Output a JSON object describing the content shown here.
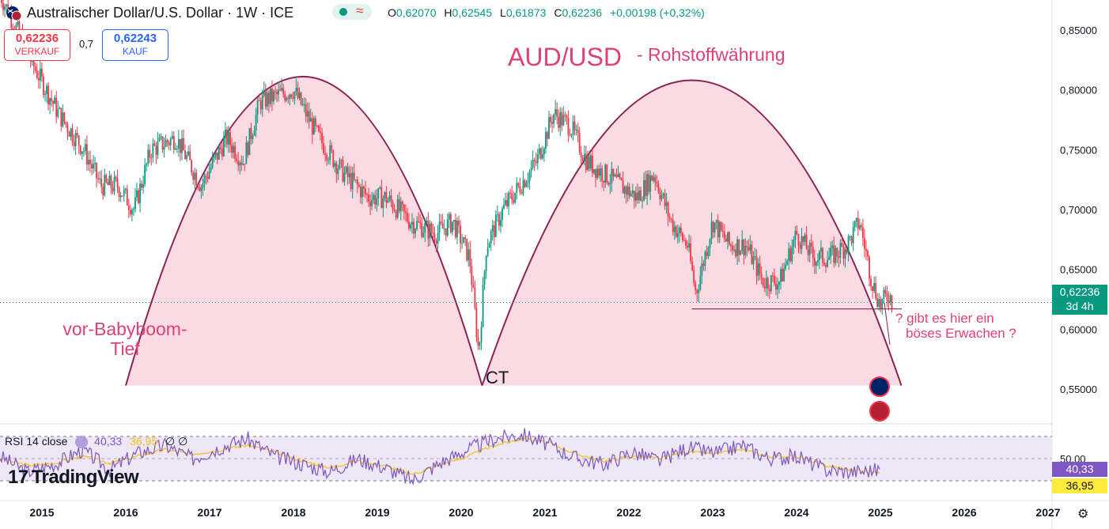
{
  "header": {
    "flag_icon": "aud-usd-flag-icon",
    "title": "Australischer Dollar/U.S. Dollar · 1W · ICE",
    "approx_symbol": "≈",
    "ohlc": {
      "o_label": "O",
      "o": "0,62070",
      "h_label": "H",
      "h": "0,62545",
      "l_label": "L",
      "l": "0,61873",
      "c_label": "C",
      "c": "0,62236",
      "change": "+0,00198 (+0,32%)"
    }
  },
  "trade": {
    "sell_price": "0,62236",
    "sell_label": "VERKAUF",
    "spread": "0,7",
    "buy_price": "0,62243",
    "buy_label": "KAUF"
  },
  "annotations": {
    "headline": "AUD/USD",
    "subtitle": "- Rohstoffwährung",
    "left_label_line1": "vor-Babyboom-",
    "left_label_line2": "Tief",
    "ct_label": "CT",
    "question_line1": "? gibt es hier ein",
    "question_line2": "böses Erwachen ?"
  },
  "price_tag": {
    "price": "0,62236",
    "countdown": "3d 4h"
  },
  "rsi": {
    "title": "RSI 14 close",
    "value": "40,33",
    "ma_value": "36,95",
    "eye_icons": "∅ ∅",
    "tick_50": "50,00",
    "tag_rsi": "40,33",
    "tag_ma": "36,95"
  },
  "logo": {
    "mark": "17",
    "text": "TradingView"
  },
  "colors": {
    "up": "#089981",
    "down": "#f23645",
    "arc_fill": "#fad6e0",
    "arc_stroke": "#8b2357",
    "annotation_text": "#e0407a",
    "rsi_line": "#7e57c2",
    "rsi_ma": "#f0c020",
    "rsi_band": "#ede7f6"
  },
  "chart_data": {
    "type": "line",
    "title": "Australischer Dollar/U.S. Dollar · 1W · ICE",
    "x_ticks": [
      "2015",
      "2016",
      "2017",
      "2018",
      "2019",
      "2020",
      "2021",
      "2022",
      "2023",
      "2024",
      "2025",
      "2026",
      "2027"
    ],
    "y_ticks": [
      "0,85000",
      "0,80000",
      "0,75000",
      "0,70000",
      "0,65000",
      "0,60000",
      "0,55000"
    ],
    "ylim": [
      0.525,
      0.875
    ],
    "series": [
      {
        "x": [
          2014.5,
          2014.9,
          2015.2,
          2015.5,
          2015.7,
          2015.9,
          2016.1,
          2016.3,
          2016.6,
          2016.9,
          2017.2,
          2017.4,
          2017.6,
          2018.0,
          2018.3,
          2018.6,
          2018.9,
          2019.1,
          2019.4,
          2019.7,
          2019.9,
          2020.1,
          2020.21,
          2020.3,
          2020.5,
          2020.7,
          2020.9,
          2021.1,
          2021.3,
          2021.5,
          2021.7,
          2021.9,
          2022.1,
          2022.3,
          2022.5,
          2022.7,
          2022.8,
          2023.0,
          2023.2,
          2023.4,
          2023.6,
          2023.8,
          2024.0,
          2024.2,
          2024.4,
          2024.6,
          2024.75,
          2024.9,
          2025.0,
          2025.1,
          2025.15
        ],
        "values": [
          0.88,
          0.82,
          0.78,
          0.75,
          0.72,
          0.72,
          0.7,
          0.75,
          0.76,
          0.72,
          0.76,
          0.74,
          0.79,
          0.8,
          0.76,
          0.73,
          0.71,
          0.71,
          0.69,
          0.68,
          0.69,
          0.66,
          0.58,
          0.67,
          0.7,
          0.72,
          0.74,
          0.78,
          0.77,
          0.74,
          0.73,
          0.72,
          0.71,
          0.73,
          0.69,
          0.67,
          0.63,
          0.69,
          0.67,
          0.67,
          0.64,
          0.64,
          0.68,
          0.66,
          0.66,
          0.67,
          0.69,
          0.64,
          0.62,
          0.63,
          0.622
        ]
      }
    ],
    "support_level": 0.617,
    "arches": [
      {
        "x_start": 2016.0,
        "x_end": 2020.25,
        "peak_x": 2018.1,
        "peak_value": 0.811,
        "base_value": 0.553
      },
      {
        "x_start": 2020.25,
        "x_end": 2025.25,
        "peak_x": 2022.75,
        "peak_value": 0.808,
        "base_value": 0.553
      }
    ],
    "rsi": {
      "ticks": [
        "50,00"
      ],
      "ylim": [
        20,
        80
      ],
      "upper_band": 70,
      "lower_band": 30,
      "values": [
        52,
        38,
        45,
        58,
        40,
        55,
        62,
        50,
        60,
        68,
        52,
        45,
        38,
        50,
        42,
        30,
        46,
        58,
        68,
        72,
        62,
        50,
        45,
        56,
        48,
        60,
        55,
        62,
        50,
        52,
        40,
        38,
        40
      ],
      "ma_values": [
        50,
        44,
        46,
        52,
        46,
        52,
        58,
        54,
        58,
        62,
        56,
        48,
        42,
        48,
        44,
        36,
        44,
        52,
        62,
        68,
        64,
        54,
        48,
        52,
        50,
        56,
        54,
        58,
        52,
        52,
        44,
        40,
        36.95
      ]
    }
  }
}
